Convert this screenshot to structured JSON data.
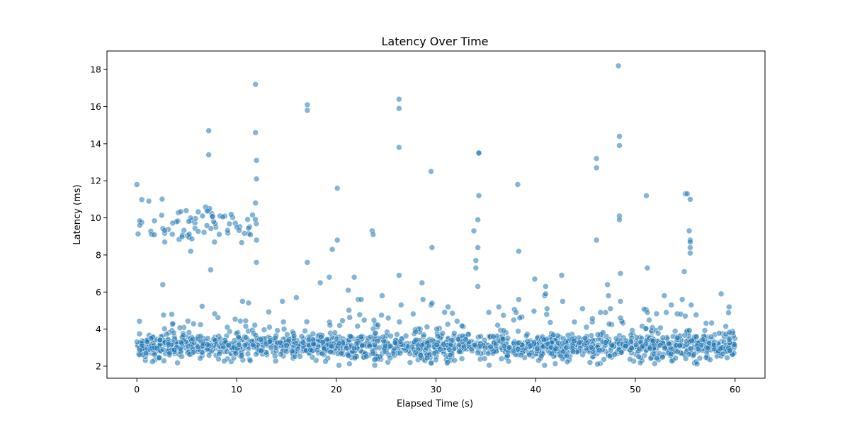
{
  "chart_data": {
    "type": "scatter",
    "title": "Latency Over Time",
    "xlabel": "Elapsed Time (s)",
    "ylabel": "Latency (ms)",
    "xlim": [
      -3,
      63
    ],
    "ylim": [
      1.35,
      19
    ],
    "xticks": [
      0,
      10,
      20,
      30,
      40,
      50,
      60
    ],
    "yticks": [
      2,
      4,
      6,
      8,
      10,
      12,
      14,
      16,
      18
    ],
    "grid": false,
    "legend": "none",
    "marker_color": "#1f77b4",
    "marker_edge_color": "#ffffff",
    "marker_alpha": 0.55,
    "baseline_band": {
      "x_range": [
        0,
        60
      ],
      "center": 3.05,
      "spread": 0.35,
      "typical_range": [
        2.2,
        4.0
      ],
      "approx_point_count": 1800
    },
    "early_high_cluster": {
      "x_range": [
        0,
        12
      ],
      "center": 9.6,
      "spread": 0.55,
      "approx_point_count": 75
    },
    "outliers": {
      "x": [
        0,
        0.3,
        1.2,
        2.6,
        2.8,
        3.5,
        3.7,
        3.6,
        5.4,
        7.2,
        7.2,
        7.4,
        10.6,
        11.9,
        11.9,
        12.0,
        12.0,
        11.9,
        12.0,
        12.0,
        13.3,
        14.6,
        16.0,
        17.1,
        17.1,
        17.1,
        18.4,
        19.3,
        19.6,
        20.1,
        20.1,
        21.2,
        21.8,
        22.2,
        22.5,
        23.6,
        23.7,
        24.6,
        26.3,
        26.3,
        26.3,
        26.3,
        26.5,
        28.6,
        28.7,
        29.5,
        29.6,
        29.5,
        29.6,
        31.2,
        33.8,
        34.0,
        34.0,
        34.2,
        34.3,
        34.3,
        34.3,
        34.2,
        34.2,
        35.3,
        36.3,
        38.2,
        38.3,
        38.3,
        39.9,
        40.9,
        41.0,
        41.0,
        41.1,
        42.6,
        42.7,
        44.7,
        46.1,
        46.1,
        46.1,
        46.5,
        47.2,
        47.3,
        47.5,
        48.3,
        48.4,
        48.4,
        48.4,
        48.4,
        48.5,
        48.5,
        48.5,
        51.1,
        51.2,
        51.2,
        52.9,
        53.1,
        53.6,
        54.7,
        54.9,
        55.0,
        55.0,
        55.2,
        55.5,
        55.4,
        55.5,
        55.5,
        55.5,
        55.5,
        55.6,
        58.6,
        59.4
      ],
      "y": [
        11.8,
        9.6,
        10.9,
        6.4,
        8.7,
        4.8,
        3.8,
        4.3,
        8.2,
        14.7,
        13.4,
        7.2,
        5.5,
        17.2,
        14.6,
        13.1,
        12.1,
        10.8,
        8.8,
        7.6,
        4.1,
        5.5,
        5.7,
        16.1,
        15.8,
        7.6,
        6.5,
        6.8,
        8.3,
        11.6,
        8.8,
        6.1,
        6.8,
        5.6,
        5.6,
        9.3,
        9.1,
        5.8,
        16.4,
        15.9,
        13.8,
        6.9,
        5.3,
        6.5,
        5.6,
        12.5,
        8.4,
        5.3,
        5.4,
        5.2,
        9.3,
        7.7,
        7.3,
        8.4,
        13.5,
        13.5,
        11.2,
        9.9,
        6.3,
        4.9,
        5.2,
        11.8,
        8.2,
        5.6,
        6.7,
        5.8,
        6.3,
        5.9,
        4.8,
        6.9,
        5.5,
        5.1,
        13.2,
        12.7,
        8.8,
        4.9,
        6.4,
        5.8,
        5.1,
        18.2,
        14.4,
        13.9,
        10.1,
        9.9,
        7.0,
        5.5,
        4.6,
        11.2,
        7.3,
        4.9,
        5.8,
        4.9,
        5.3,
        5.6,
        7.1,
        11.3,
        4.7,
        11.3,
        11.0,
        9.3,
        8.8,
        8.7,
        8.4,
        8.1,
        5.3,
        5.9,
        5.2
      ]
    }
  }
}
